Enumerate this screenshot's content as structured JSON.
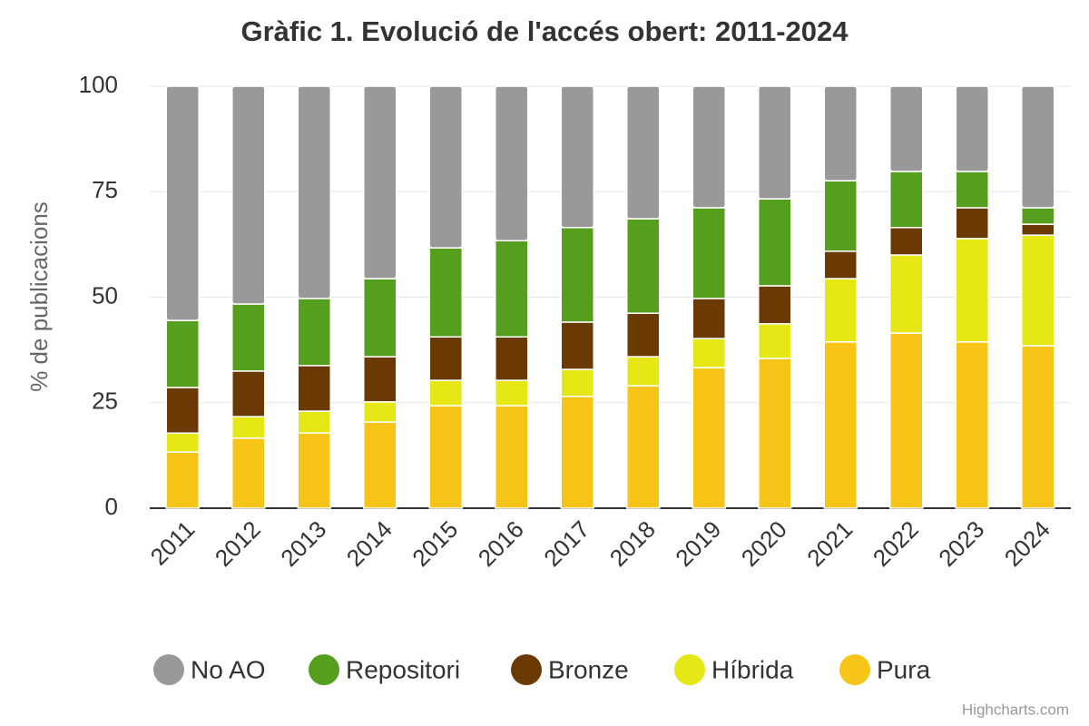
{
  "chart_data": {
    "type": "stacked-bar",
    "title": "Gràfic 1. Evolució de l'accés obert: 2011-2024",
    "y_label": "% de publicacions",
    "credits": "Highcharts.com",
    "categories": [
      "2011",
      "2012",
      "2013",
      "2014",
      "2015",
      "2016",
      "2017",
      "2018",
      "2019",
      "2020",
      "2021",
      "2022",
      "2023",
      "2024"
    ],
    "series": [
      {
        "name": "No AO",
        "color": "#999999",
        "values": [
          55.5,
          51.6,
          50.3,
          45.6,
          38.3,
          36.6,
          33.5,
          31.4,
          28.8,
          26.7,
          22.4,
          20.2,
          20.2,
          28.8
        ]
      },
      {
        "name": "Repositori",
        "color": "#559e1e",
        "values": [
          15.9,
          15.9,
          15.9,
          18.5,
          21.1,
          22.8,
          22.4,
          22.4,
          21.5,
          20.6,
          16.7,
          13.3,
          8.6,
          3.9
        ]
      },
      {
        "name": "Bronze",
        "color": "#6b3a04",
        "values": [
          10.8,
          10.8,
          10.8,
          10.7,
          10.3,
          10.3,
          11.2,
          10.3,
          9.5,
          9.0,
          6.5,
          6.5,
          7.3,
          2.6
        ]
      },
      {
        "name": "Híbrida",
        "color": "#e5e814",
        "values": [
          4.5,
          5.1,
          5.2,
          4.8,
          6.0,
          6.0,
          6.4,
          6.9,
          6.9,
          8.2,
          15.0,
          18.5,
          24.5,
          26.2
        ]
      },
      {
        "name": "Pura",
        "color": "#f6c518",
        "values": [
          13.3,
          16.6,
          17.8,
          20.4,
          24.3,
          24.3,
          26.5,
          29.0,
          33.3,
          35.5,
          39.4,
          41.5,
          39.4,
          38.5
        ]
      }
    ],
    "ylim": [
      0,
      100
    ],
    "yticks": [
      0,
      25,
      50,
      75,
      100
    ],
    "grid": true
  }
}
